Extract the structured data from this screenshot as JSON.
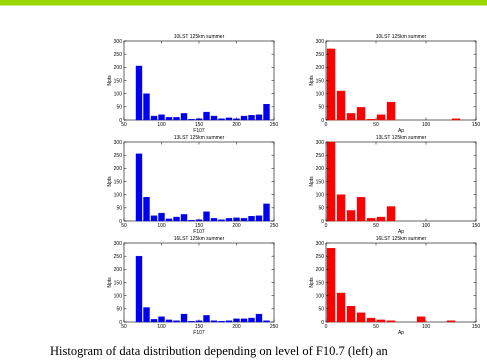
{
  "caption": "Histogram of data distribution depending on level of F10.7 (left) an",
  "colors": {
    "left": "#0000ee",
    "right": "#ff0000",
    "accent_bar": "#9ad600"
  },
  "chart_data": [
    {
      "type": "bar",
      "title": "10LST 125km summer",
      "xlabel": "F107",
      "ylabel": "Npts",
      "xlim": [
        50,
        250
      ],
      "ylim": [
        0,
        300
      ],
      "bin_width": 8,
      "xticks": [
        50,
        100,
        150,
        200,
        250
      ],
      "yticks": [
        0,
        50,
        100,
        150,
        200,
        250,
        300
      ],
      "x": [
        70,
        80,
        90,
        100,
        110,
        120,
        130,
        140,
        150,
        160,
        170,
        180,
        190,
        200,
        210,
        220,
        230,
        240
      ],
      "values": [
        205,
        100,
        15,
        20,
        10,
        10,
        25,
        3,
        5,
        30,
        15,
        5,
        8,
        5,
        15,
        18,
        20,
        60
      ]
    },
    {
      "type": "bar",
      "title": "10LST 125km summer",
      "xlabel": "Ap",
      "ylabel": "Npts",
      "xlim": [
        0,
        150
      ],
      "ylim": [
        0,
        300
      ],
      "bin_width": 8,
      "xticks": [
        0,
        50,
        100,
        150
      ],
      "yticks": [
        0,
        50,
        100,
        150,
        200,
        250,
        300
      ],
      "x": [
        5,
        15,
        25,
        35,
        45,
        55,
        65,
        130
      ],
      "values": [
        270,
        110,
        25,
        48,
        3,
        20,
        68,
        5
      ]
    },
    {
      "type": "bar",
      "title": "13LST 125km summer",
      "xlabel": "F107",
      "ylabel": "Npts",
      "xlim": [
        50,
        250
      ],
      "ylim": [
        0,
        300
      ],
      "bin_width": 8,
      "xticks": [
        50,
        100,
        150,
        200,
        250
      ],
      "yticks": [
        0,
        50,
        100,
        150,
        200,
        250,
        300
      ],
      "x": [
        70,
        80,
        90,
        100,
        110,
        120,
        130,
        140,
        150,
        160,
        170,
        180,
        190,
        200,
        210,
        220,
        230,
        240
      ],
      "values": [
        255,
        90,
        20,
        30,
        8,
        15,
        25,
        3,
        5,
        35,
        10,
        5,
        10,
        12,
        10,
        18,
        20,
        65
      ]
    },
    {
      "type": "bar",
      "title": "13LST 125km summer",
      "xlabel": "Ap",
      "ylabel": "Npts",
      "xlim": [
        0,
        150
      ],
      "ylim": [
        0,
        300
      ],
      "bin_width": 8,
      "xticks": [
        0,
        50,
        100,
        150
      ],
      "yticks": [
        0,
        50,
        100,
        150,
        200,
        250,
        300
      ],
      "x": [
        5,
        15,
        25,
        35,
        45,
        55,
        65
      ],
      "values": [
        300,
        100,
        40,
        90,
        10,
        15,
        55
      ]
    },
    {
      "type": "bar",
      "title": "16LST 125km summer",
      "xlabel": "F107",
      "ylabel": "Npts",
      "xlim": [
        50,
        250
      ],
      "ylim": [
        0,
        300
      ],
      "bin_width": 8,
      "xticks": [
        50,
        100,
        150,
        200,
        250
      ],
      "yticks": [
        0,
        50,
        100,
        150,
        200,
        250,
        300
      ],
      "x": [
        70,
        80,
        90,
        100,
        110,
        120,
        130,
        140,
        150,
        160,
        170,
        180,
        190,
        200,
        210,
        220,
        230,
        240
      ],
      "values": [
        250,
        55,
        10,
        20,
        8,
        5,
        30,
        3,
        5,
        25,
        5,
        3,
        5,
        12,
        12,
        15,
        30,
        5
      ]
    },
    {
      "type": "bar",
      "title": "16LST 125km summer",
      "xlabel": "Ap",
      "ylabel": "Npts",
      "xlim": [
        0,
        150
      ],
      "ylim": [
        0,
        300
      ],
      "bin_width": 8,
      "xticks": [
        0,
        50,
        100,
        150
      ],
      "yticks": [
        0,
        50,
        100,
        150,
        200,
        250,
        300
      ],
      "x": [
        5,
        15,
        25,
        35,
        45,
        55,
        65,
        95,
        125
      ],
      "values": [
        280,
        110,
        60,
        35,
        15,
        8,
        5,
        20,
        5
      ]
    }
  ]
}
